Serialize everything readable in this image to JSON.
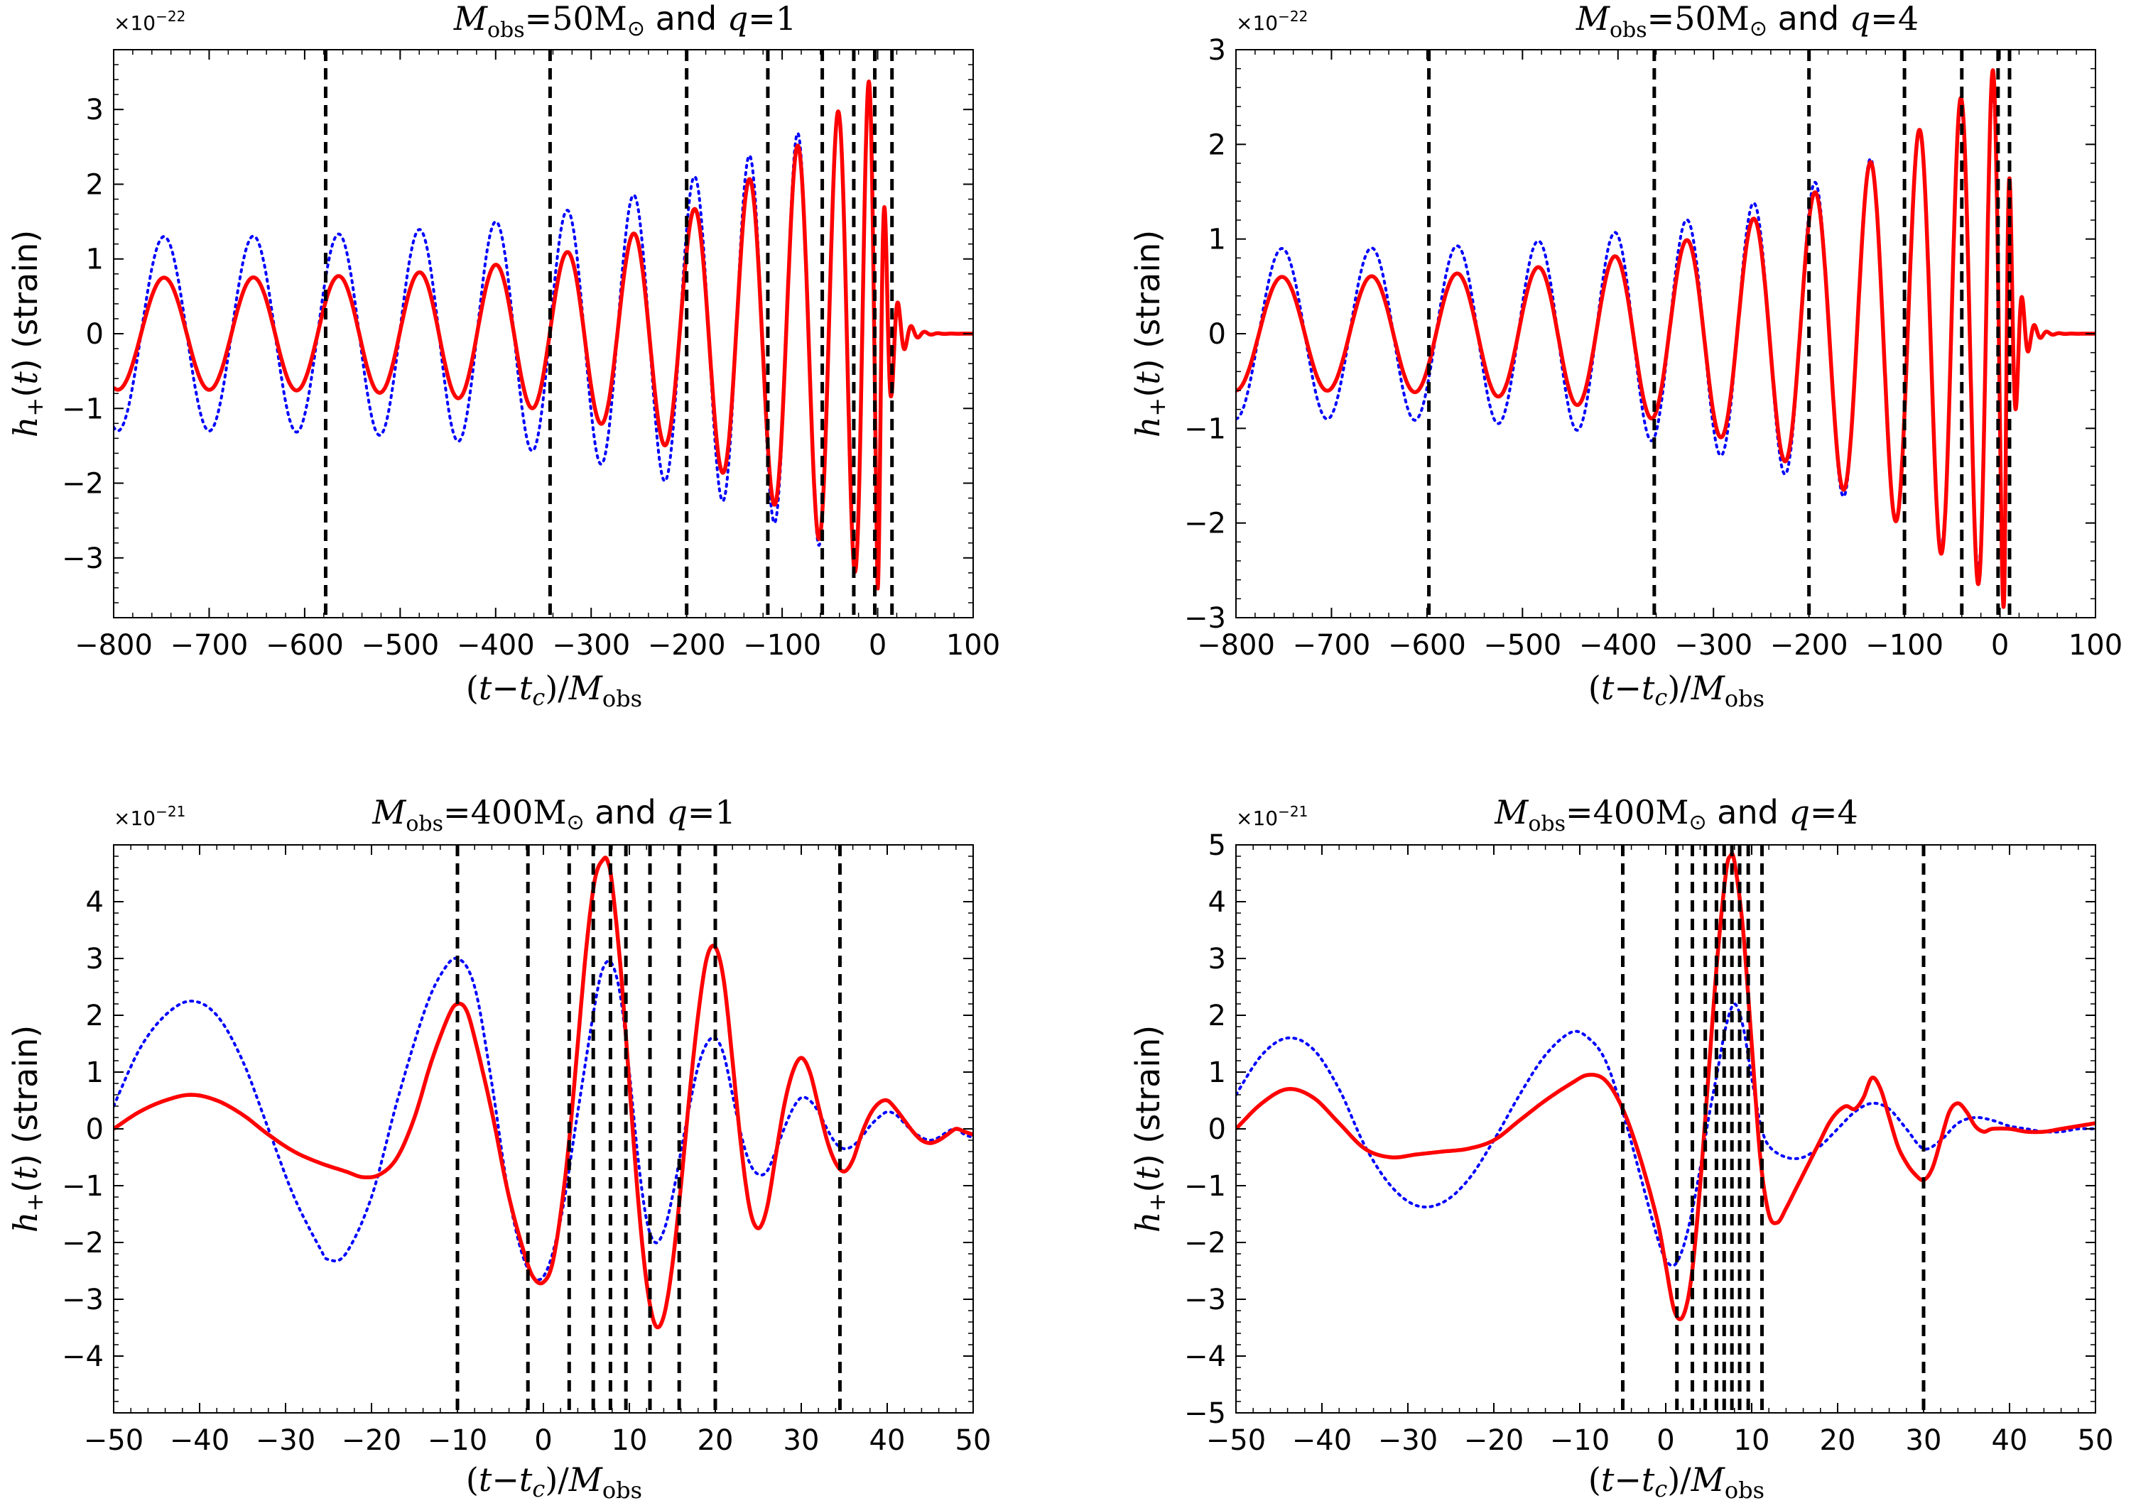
{
  "figure": {
    "axis_label_x": "(t−t_c)/M_obs",
    "axis_label_y": "h_+(t) (strain)"
  },
  "chart_data": [
    {
      "type": "line",
      "title": "M_obs=50M⊙ and q=1",
      "title_parts": {
        "mass": "50",
        "q": "1"
      },
      "multiplier": "×10⁻²²",
      "mult_exp": "−22",
      "xlabel": "(t−t_c)/M_obs",
      "ylabel": "h_+(t) (strain)",
      "xlim": [
        -800,
        100
      ],
      "ylim": [
        -3.8,
        3.8
      ],
      "xticks": [
        -800,
        -700,
        -600,
        -500,
        -400,
        -300,
        -200,
        -100,
        0,
        100
      ],
      "yticks": [
        -3,
        -2,
        -1,
        0,
        1,
        2,
        3
      ],
      "vlines": [
        -578,
        -343,
        -200,
        -115,
        -58,
        -25,
        -3,
        15
      ],
      "series": [
        {
          "name": "red-solid",
          "color": "#ff0000",
          "style": "solid",
          "kind": "inspiral",
          "t0": -800,
          "tc": 0,
          "A0": 0.75,
          "A1": 0.6,
          "P0": 98,
          "P1": 9,
          "amp_exp": 0.25,
          "phase": 0.0,
          "peak": 3.5,
          "ringdown_tau": 10,
          "ringdown_period": 14
        },
        {
          "name": "blue-dotted",
          "color": "#0000ff",
          "style": "dotted",
          "kind": "inspiral",
          "t0": -800,
          "tc": 0,
          "A0": 1.3,
          "A1": 1.2,
          "P0": 98,
          "P1": 9,
          "amp_exp": 0.3,
          "phase": 0.0,
          "peak": 3.3,
          "ringdown_tau": 10,
          "ringdown_period": 14
        }
      ]
    },
    {
      "type": "line",
      "title": "M_obs=50M⊙ and q=4",
      "title_parts": {
        "mass": "50",
        "q": "4"
      },
      "multiplier": "×10⁻²²",
      "mult_exp": "−22",
      "xlabel": "(t−t_c)/M_obs",
      "ylabel": "h_+(t) (strain)",
      "xlim": [
        -800,
        100
      ],
      "ylim": [
        -3.0,
        3.0
      ],
      "xticks": [
        -800,
        -700,
        -600,
        -500,
        -400,
        -300,
        -200,
        -100,
        0,
        100
      ],
      "yticks": [
        -3,
        -2,
        -1,
        0,
        1,
        2,
        3
      ],
      "vlines": [
        -598,
        -362,
        -200,
        -100,
        -40,
        -2,
        10
      ],
      "series": [
        {
          "name": "red-solid",
          "color": "#ff0000",
          "style": "solid",
          "kind": "inspiral",
          "t0": -800,
          "tc": 5,
          "A0": 0.6,
          "A1": 1.4,
          "P0": 98,
          "P1": 9,
          "amp_exp": 0.3,
          "phase": 0.3,
          "peak": 2.9,
          "ringdown_tau": 9,
          "ringdown_period": 13
        },
        {
          "name": "blue-dotted",
          "color": "#0000ff",
          "style": "dotted",
          "kind": "inspiral",
          "t0": -800,
          "tc": 5,
          "A0": 0.9,
          "A1": 1.2,
          "P0": 98,
          "P1": 9,
          "amp_exp": 0.3,
          "phase": 0.3,
          "peak": 2.7,
          "ringdown_tau": 9,
          "ringdown_period": 13
        }
      ]
    },
    {
      "type": "line",
      "title": "M_obs=400M⊙ and q=1",
      "title_parts": {
        "mass": "400",
        "q": "1"
      },
      "multiplier": "×10⁻²¹",
      "mult_exp": "−21",
      "xlabel": "(t−t_c)/M_obs",
      "ylabel": "h_+(t) (strain)",
      "xlim": [
        -50,
        50
      ],
      "ylim": [
        -5.0,
        5.0
      ],
      "xticks": [
        -50,
        -40,
        -30,
        -20,
        -10,
        0,
        10,
        20,
        30,
        40,
        50
      ],
      "yticks": [
        -4,
        -3,
        -2,
        -1,
        0,
        1,
        2,
        3,
        4
      ],
      "vlines": [
        -10,
        -1.8,
        3,
        5.8,
        7.8,
        9.6,
        12.4,
        15.8,
        20,
        34.5
      ],
      "series": [
        {
          "name": "red-solid",
          "color": "#ff0000",
          "style": "solid",
          "kind": "points",
          "x": [
            -50,
            -47,
            -44,
            -41,
            -38,
            -35,
            -32,
            -29,
            -26,
            -23,
            -21,
            -19,
            -17,
            -15,
            -13,
            -11,
            -10,
            -9,
            -8,
            -6,
            -4,
            -2,
            -1,
            0,
            1,
            2,
            3,
            4,
            5,
            6,
            7,
            7.5,
            8,
            9,
            10,
            11,
            12,
            13,
            14,
            15,
            16,
            17,
            18,
            19,
            20,
            21,
            22,
            23,
            24,
            25,
            26,
            27,
            28,
            29,
            30,
            31,
            32,
            33,
            34,
            35,
            36,
            37,
            38,
            39,
            40,
            41,
            42,
            43,
            44,
            45,
            46,
            47,
            48,
            49,
            50
          ],
          "y": [
            0.0,
            0.3,
            0.5,
            0.6,
            0.5,
            0.25,
            -0.1,
            -0.4,
            -0.6,
            -0.75,
            -0.85,
            -0.8,
            -0.5,
            0.2,
            1.2,
            2.0,
            2.2,
            2.1,
            1.6,
            0.3,
            -1.2,
            -2.3,
            -2.65,
            -2.7,
            -2.4,
            -1.5,
            -0.2,
            1.5,
            3.2,
            4.4,
            4.75,
            4.7,
            4.3,
            2.8,
            0.8,
            -1.2,
            -2.7,
            -3.45,
            -3.3,
            -2.4,
            -1.0,
            0.6,
            2.0,
            3.0,
            3.2,
            2.6,
            1.2,
            -0.3,
            -1.4,
            -1.75,
            -1.4,
            -0.5,
            0.4,
            1.0,
            1.25,
            1.0,
            0.4,
            -0.2,
            -0.6,
            -0.75,
            -0.55,
            -0.1,
            0.25,
            0.45,
            0.5,
            0.35,
            0.15,
            -0.05,
            -0.2,
            -0.25,
            -0.2,
            -0.1,
            0.0,
            -0.05,
            -0.1
          ]
        },
        {
          "name": "blue-dotted",
          "color": "#0000ff",
          "style": "dotted",
          "kind": "points",
          "x": [
            -50,
            -47,
            -44,
            -41,
            -38,
            -35,
            -32,
            -29,
            -26,
            -25,
            -23,
            -20,
            -17,
            -14,
            -12,
            -10,
            -8,
            -6,
            -4,
            -2,
            0,
            2,
            4,
            6,
            7,
            8,
            9,
            10,
            11,
            12,
            13,
            14,
            15,
            16,
            17,
            18,
            19,
            20,
            21,
            22,
            23,
            24,
            25,
            26,
            27,
            28,
            29,
            30,
            31,
            32,
            33,
            34,
            35,
            36,
            37,
            38,
            39,
            40,
            41,
            42,
            43,
            44,
            45,
            46,
            47,
            48,
            49,
            50
          ],
          "y": [
            0.4,
            1.4,
            2.0,
            2.25,
            2.0,
            1.2,
            0.0,
            -1.2,
            -2.1,
            -2.3,
            -2.2,
            -1.2,
            0.5,
            2.0,
            2.7,
            3.0,
            2.5,
            0.8,
            -1.2,
            -2.4,
            -2.6,
            -1.6,
            0.3,
            2.2,
            2.85,
            2.9,
            2.3,
            1.0,
            -0.5,
            -1.6,
            -2.0,
            -1.8,
            -1.2,
            -0.4,
            0.4,
            1.1,
            1.5,
            1.6,
            1.3,
            0.6,
            -0.1,
            -0.6,
            -0.8,
            -0.75,
            -0.4,
            0.0,
            0.35,
            0.55,
            0.5,
            0.3,
            0.0,
            -0.25,
            -0.35,
            -0.3,
            -0.15,
            0.05,
            0.2,
            0.3,
            0.25,
            0.1,
            -0.05,
            -0.15,
            -0.2,
            -0.15,
            -0.05,
            0.0,
            -0.1,
            -0.15
          ]
        }
      ]
    },
    {
      "type": "line",
      "title": "M_obs=400M⊙ and q=4",
      "title_parts": {
        "mass": "400",
        "q": "4"
      },
      "multiplier": "×10⁻²¹",
      "mult_exp": "−21",
      "xlabel": "(t−t_c)/M_obs",
      "ylabel": "h_+(t) (strain)",
      "xlim": [
        -50,
        50
      ],
      "ylim": [
        -5.0,
        5.0
      ],
      "xticks": [
        -50,
        -40,
        -30,
        -20,
        -10,
        0,
        10,
        20,
        30,
        40,
        50
      ],
      "yticks": [
        -5,
        -4,
        -3,
        -2,
        -1,
        0,
        1,
        2,
        3,
        4,
        5
      ],
      "vlines": [
        -5,
        1.3,
        3.1,
        4.6,
        5.9,
        6.8,
        7.7,
        8.6,
        9.6,
        11.2,
        30
      ],
      "series": [
        {
          "name": "red-solid",
          "color": "#ff0000",
          "style": "solid",
          "kind": "points",
          "x": [
            -50,
            -47,
            -44,
            -41,
            -38,
            -35,
            -32,
            -29,
            -26,
            -23,
            -20,
            -17,
            -14,
            -11,
            -9,
            -7,
            -5,
            -3,
            -1,
            0,
            1,
            2,
            3,
            4,
            5,
            6,
            7,
            7.5,
            8,
            9,
            10,
            11,
            12,
            13,
            14,
            15,
            16,
            17,
            18,
            19,
            20,
            21,
            22,
            23,
            24,
            25,
            26,
            27,
            28,
            29,
            30,
            31,
            32,
            33,
            34,
            35,
            36,
            37,
            38,
            40,
            42,
            44,
            46,
            48,
            50
          ],
          "y": [
            0.0,
            0.45,
            0.7,
            0.55,
            0.1,
            -0.35,
            -0.5,
            -0.45,
            -0.4,
            -0.35,
            -0.2,
            0.15,
            0.5,
            0.8,
            0.95,
            0.85,
            0.35,
            -0.5,
            -1.6,
            -2.4,
            -3.2,
            -3.3,
            -2.6,
            -1.0,
            1.0,
            3.0,
            4.5,
            4.8,
            4.7,
            3.5,
            1.5,
            -0.5,
            -1.5,
            -1.65,
            -1.4,
            -1.1,
            -0.8,
            -0.5,
            -0.2,
            0.1,
            0.3,
            0.4,
            0.35,
            0.55,
            0.9,
            0.7,
            0.2,
            -0.3,
            -0.6,
            -0.8,
            -0.9,
            -0.7,
            -0.2,
            0.3,
            0.45,
            0.3,
            0.05,
            -0.05,
            0.0,
            0.0,
            -0.05,
            -0.05,
            0.0,
            0.05,
            0.1
          ]
        },
        {
          "name": "blue-dotted",
          "color": "#0000ff",
          "style": "dotted",
          "kind": "points",
          "x": [
            -50,
            -47,
            -44,
            -41,
            -38,
            -35,
            -32,
            -29,
            -26,
            -23,
            -20,
            -17,
            -14,
            -11,
            -9,
            -7,
            -5,
            -3,
            -1,
            0,
            1,
            2,
            3,
            4,
            5,
            6,
            7,
            8,
            9,
            10,
            11,
            12,
            14,
            16,
            18,
            20,
            22,
            24,
            26,
            28,
            30,
            32,
            34,
            36,
            38,
            40,
            42,
            44,
            46,
            48,
            50
          ],
          "y": [
            0.6,
            1.3,
            1.6,
            1.4,
            0.7,
            -0.3,
            -1.0,
            -1.35,
            -1.3,
            -0.9,
            -0.2,
            0.6,
            1.3,
            1.7,
            1.6,
            1.2,
            0.3,
            -0.8,
            -1.9,
            -2.3,
            -2.4,
            -2.1,
            -1.5,
            -0.7,
            0.2,
            1.0,
            1.8,
            2.2,
            1.8,
            0.9,
            0.1,
            -0.3,
            -0.5,
            -0.5,
            -0.3,
            0.0,
            0.3,
            0.45,
            0.35,
            0.0,
            -0.35,
            -0.2,
            0.1,
            0.2,
            0.15,
            0.05,
            0.0,
            -0.05,
            -0.05,
            0.0,
            0.0
          ]
        }
      ]
    }
  ]
}
